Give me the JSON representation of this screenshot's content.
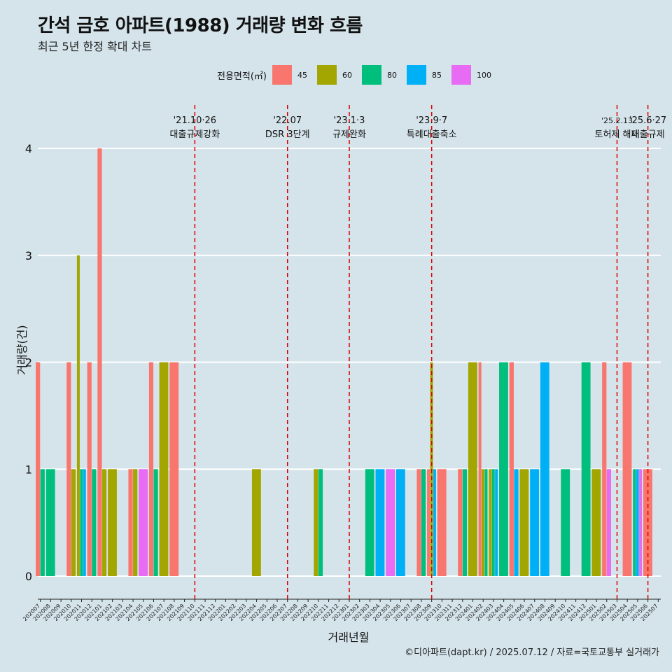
{
  "chart_data": {
    "type": "bar",
    "title": "간석 금호 아파트(1988) 거래량 변화 흐름",
    "subtitle": "최근 5년 한정 확대 차트",
    "xlabel": "거래년월",
    "ylabel": "거래량(건)",
    "caption": "©디아파트(dapt.kr) / 2025.07.12 / 자료=국토교통부 실거래가",
    "legend_title": "전용면적(㎡)",
    "legend_position": "top",
    "ylim": [
      0,
      4
    ],
    "y_ticks": [
      0,
      1,
      2,
      3,
      4
    ],
    "grid": true,
    "categories": [
      "202007",
      "202008",
      "202009",
      "202010",
      "202011",
      "202012",
      "202101",
      "202102",
      "202103",
      "202104",
      "202105",
      "202106",
      "202107",
      "202108",
      "202109",
      "202110",
      "202111",
      "202112",
      "202201",
      "202202",
      "202203",
      "202204",
      "202205",
      "202206",
      "202207",
      "202208",
      "202209",
      "202210",
      "202211",
      "202212",
      "202301",
      "202302",
      "202303",
      "202304",
      "202305",
      "202306",
      "202307",
      "202308",
      "202309",
      "202310",
      "202311",
      "202312",
      "202401",
      "202402",
      "202403",
      "202404",
      "202405",
      "202406",
      "202407",
      "202408",
      "202409",
      "202410",
      "202411",
      "202412",
      "202501",
      "202502",
      "202503",
      "202504",
      "202505",
      "202506",
      "202507"
    ],
    "series": [
      {
        "name": "45",
        "color": "#F8766D",
        "values": [
          2,
          0,
          0,
          2,
          0,
          2,
          4,
          0,
          0,
          1,
          0,
          2,
          0,
          2,
          0,
          0,
          0,
          0,
          0,
          0,
          0,
          0,
          0,
          0,
          0,
          0,
          0,
          0,
          0,
          0,
          0,
          0,
          0,
          0,
          0,
          0,
          0,
          1,
          1,
          1,
          0,
          1,
          0,
          2,
          0,
          0,
          2,
          0,
          0,
          0,
          0,
          0,
          0,
          0,
          0,
          2,
          0,
          2,
          0,
          1,
          0
        ]
      },
      {
        "name": "60",
        "color": "#A3A500",
        "values": [
          0,
          0,
          0,
          1,
          3,
          0,
          1,
          1,
          0,
          1,
          0,
          0,
          2,
          0,
          0,
          0,
          0,
          0,
          0,
          0,
          0,
          1,
          0,
          0,
          0,
          0,
          0,
          1,
          0,
          0,
          0,
          0,
          0,
          0,
          0,
          0,
          0,
          0,
          2,
          0,
          0,
          0,
          2,
          1,
          1,
          0,
          0,
          1,
          0,
          0,
          0,
          0,
          0,
          0,
          1,
          0,
          0,
          0,
          0,
          0,
          0
        ]
      },
      {
        "name": "80",
        "color": "#00BF7D",
        "values": [
          1,
          1,
          0,
          0,
          1,
          1,
          0,
          0,
          0,
          0,
          0,
          1,
          0,
          0,
          0,
          0,
          0,
          0,
          0,
          0,
          0,
          0,
          0,
          0,
          0,
          0,
          0,
          1,
          0,
          0,
          0,
          0,
          1,
          0,
          0,
          0,
          0,
          1,
          0,
          0,
          0,
          1,
          0,
          1,
          1,
          2,
          0,
          0,
          0,
          0,
          0,
          1,
          0,
          2,
          0,
          0,
          0,
          0,
          1,
          0,
          0
        ]
      },
      {
        "name": "85",
        "color": "#00B0F6",
        "values": [
          0,
          0,
          0,
          0,
          1,
          0,
          0,
          0,
          0,
          0,
          0,
          0,
          0,
          0,
          0,
          0,
          0,
          0,
          0,
          0,
          0,
          0,
          0,
          0,
          0,
          0,
          0,
          0,
          0,
          0,
          0,
          0,
          0,
          1,
          0,
          1,
          0,
          0,
          1,
          0,
          0,
          0,
          0,
          0,
          1,
          0,
          1,
          0,
          1,
          2,
          0,
          0,
          0,
          0,
          0,
          0,
          0,
          0,
          1,
          0,
          0
        ]
      },
      {
        "name": "100",
        "color": "#E76BF3",
        "values": [
          0,
          0,
          0,
          0,
          0,
          0,
          0,
          0,
          0,
          0,
          1,
          0,
          0,
          0,
          0,
          0,
          0,
          0,
          0,
          0,
          0,
          0,
          0,
          0,
          0,
          0,
          0,
          0,
          0,
          0,
          0,
          0,
          0,
          0,
          1,
          0,
          0,
          0,
          0,
          0,
          0,
          0,
          0,
          0,
          0,
          0,
          0,
          0,
          0,
          0,
          0,
          0,
          0,
          0,
          0,
          1,
          0,
          0,
          1,
          0,
          0
        ]
      }
    ],
    "annotations": [
      {
        "x": "202110",
        "date": "'21.10·26",
        "label": "대출규제강화"
      },
      {
        "x": "202207",
        "date": "'22.07",
        "label": "DSR 3단계"
      },
      {
        "x": "202301",
        "date": "'23.1·3",
        "label": "규제완화"
      },
      {
        "x": "202309",
        "date": "'23.9·7",
        "label": "특례대출축소"
      },
      {
        "x": "202503",
        "date": "'25.2.13",
        "label": "토허제 해제"
      },
      {
        "x": "202506",
        "date": "'25.6·27",
        "label": "대출규제"
      }
    ]
  }
}
